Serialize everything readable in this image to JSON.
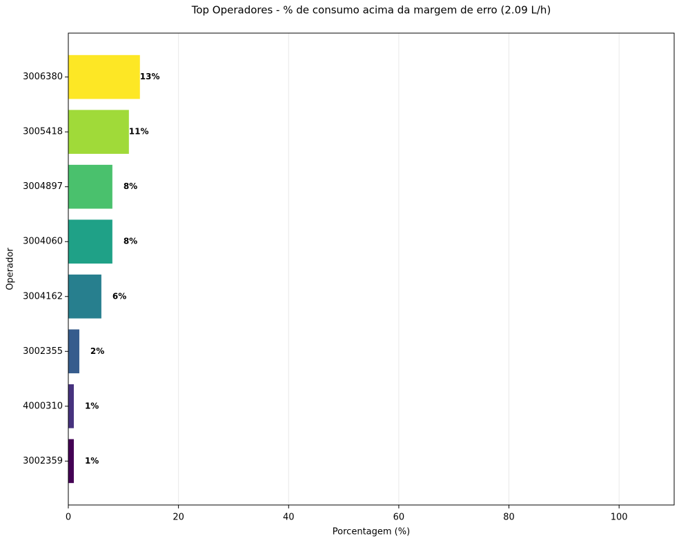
{
  "chart_data": {
    "type": "barh",
    "title": "Top Operadores - % de consumo acima da margem de erro (2.09 L/h)",
    "x_label": "Porcentagem (%)",
    "y_label": "Operador",
    "categories": [
      "3006380",
      "3005418",
      "3004897",
      "3004060",
      "3004162",
      "3002355",
      "4000310",
      "3002359"
    ],
    "values": [
      13,
      11,
      8,
      8,
      6,
      2,
      1,
      1
    ],
    "value_labels": [
      "13%",
      "11%",
      "8%",
      "8%",
      "6%",
      "2%",
      "1%",
      "1%"
    ],
    "colors": [
      "#fde725",
      "#a0da39",
      "#4ac16d",
      "#1fa187",
      "#277f8e",
      "#365c8d",
      "#46327e",
      "#440154"
    ],
    "xlim": [
      0,
      110
    ],
    "xticks": [
      0,
      20,
      40,
      60,
      80,
      100
    ],
    "grid": true
  }
}
